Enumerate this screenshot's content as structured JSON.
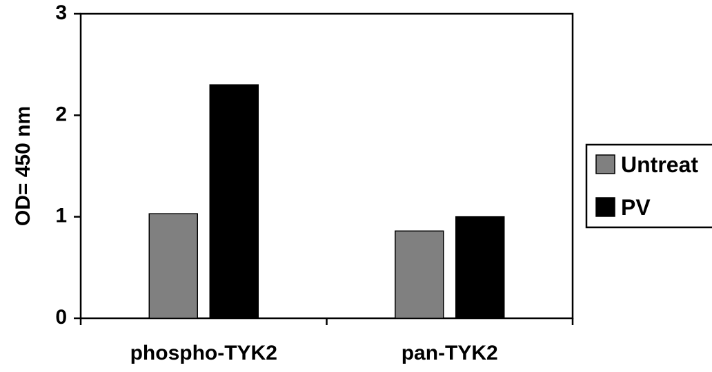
{
  "chart_data": {
    "type": "bar",
    "title": "",
    "xlabel": "",
    "ylabel": "OD= 450 nm",
    "ylim": [
      0,
      3
    ],
    "yticks": [
      "0",
      "1",
      "2",
      "3"
    ],
    "categories": [
      "phospho-TYK2",
      "pan-TYK2"
    ],
    "series": [
      {
        "name": "Untreat",
        "color": "#808080",
        "values": [
          1.03,
          0.86
        ]
      },
      {
        "name": "PV",
        "color": "#000000",
        "values": [
          2.3,
          1.0
        ]
      }
    ],
    "grid": false,
    "legend": "right"
  }
}
